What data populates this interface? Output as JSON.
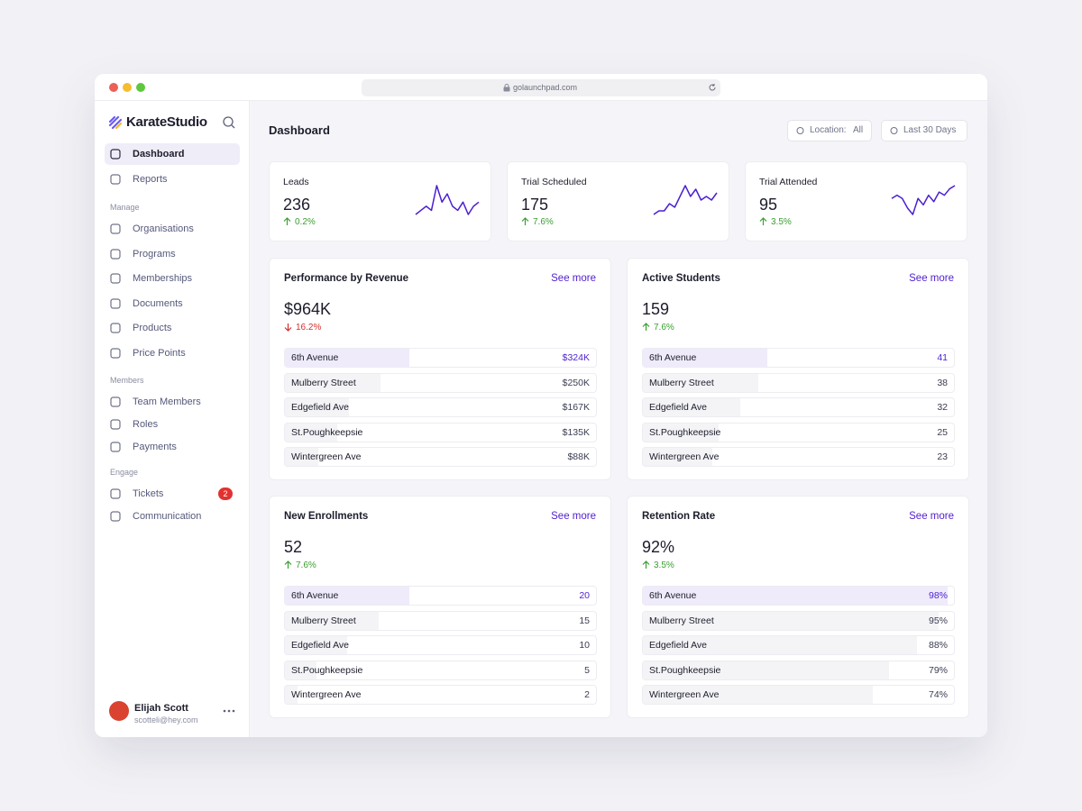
{
  "browser": {
    "url": "golaunchpad.com"
  },
  "sidebar": {
    "brand": "KarateStudio",
    "nav": [
      {
        "label": "Dashboard",
        "active": true
      },
      {
        "label": "Reports"
      }
    ],
    "sections": [
      {
        "title": "Manage",
        "items": [
          {
            "label": "Organisations"
          },
          {
            "label": "Programs"
          },
          {
            "label": "Memberships"
          },
          {
            "label": "Documents"
          },
          {
            "label": "Products"
          },
          {
            "label": "Price Points"
          }
        ]
      },
      {
        "title": "Members",
        "items": [
          {
            "label": "Team Members"
          },
          {
            "label": "Roles"
          },
          {
            "label": "Payments"
          }
        ]
      },
      {
        "title": "Engage",
        "items": [
          {
            "label": "Tickets",
            "badge": "2"
          },
          {
            "label": "Communication"
          }
        ]
      }
    ],
    "user": {
      "name": "Elijah Scott",
      "email": "scotteli@hey.com"
    }
  },
  "header": {
    "title": "Dashboard",
    "filters": [
      {
        "label": "Location:",
        "value": "All"
      },
      {
        "label": "Last 30 Days"
      }
    ]
  },
  "kpis": [
    {
      "label": "Leads",
      "value": 236,
      "change": "0.2%",
      "trend": "up",
      "sparkline": [
        2,
        3,
        4,
        3,
        9,
        5,
        7,
        4,
        3,
        5,
        2,
        4,
        5
      ]
    },
    {
      "label": "Trial Scheduled",
      "value": 175,
      "change": "7.6%",
      "trend": "up",
      "sparkline": [
        1,
        2,
        2,
        4,
        3,
        6,
        9,
        6,
        8,
        5,
        6,
        5,
        7
      ]
    },
    {
      "label": "Trial Attended",
      "value": 95,
      "change": "3.5%",
      "trend": "up",
      "sparkline": [
        6,
        7,
        6,
        3,
        1,
        6,
        4,
        7,
        5,
        8,
        7,
        9,
        10
      ]
    }
  ],
  "panels": [
    {
      "title": "Performance by Revenue",
      "link": "See more",
      "value": "$964K",
      "change": "16.2%",
      "trend": "down",
      "format": "count",
      "rows": [
        {
          "name": "6th Avenue",
          "value": 324,
          "value_label": "$324K"
        },
        {
          "name": "Mulberry Street",
          "value": 250,
          "value_label": "$250K"
        },
        {
          "name": "Edgefield Ave",
          "value": 167,
          "value_label": "$167K"
        },
        {
          "name": "St.Poughkeepsie",
          "value": 135,
          "value_label": "$135K"
        },
        {
          "name": "Wintergreen Ave",
          "value": 88,
          "value_label": "$88K"
        }
      ]
    },
    {
      "title": "Active Students",
      "link": "See more",
      "value": "159",
      "change": "7.6%",
      "trend": "up",
      "format": "count",
      "rows": [
        {
          "name": "6th Avenue",
          "value": 41
        },
        {
          "name": "Mulberry Street",
          "value": 38
        },
        {
          "name": "Edgefield Ave",
          "value": 32
        },
        {
          "name": "St.Poughkeepsie",
          "value": 25
        },
        {
          "name": "Wintergreen Ave",
          "value": 23
        }
      ]
    },
    {
      "title": "New Enrollments",
      "link": "See more",
      "value": "52",
      "change": "7.6%",
      "trend": "up",
      "format": "count",
      "rows": [
        {
          "name": "6th Avenue",
          "value": 20
        },
        {
          "name": "Mulberry Street",
          "value": 15
        },
        {
          "name": "Edgefield Ave",
          "value": 10
        },
        {
          "name": "St.Poughkeepsie",
          "value": 5
        },
        {
          "name": "Wintergreen Ave",
          "value": 2
        }
      ]
    },
    {
      "title": "Retention Rate",
      "link": "See more",
      "value": "92%",
      "change": "3.5%",
      "trend": "up",
      "format": "percent",
      "rows": [
        {
          "name": "6th Avenue",
          "value": 98,
          "value_label": "98%"
        },
        {
          "name": "Mulberry Street",
          "value": 95,
          "value_label": "95%"
        },
        {
          "name": "Edgefield Ave",
          "value": 88,
          "value_label": "88%"
        },
        {
          "name": "St.Poughkeepsie",
          "value": 79,
          "value_label": "79%"
        },
        {
          "name": "Wintergreen Ave",
          "value": 74,
          "value_label": "74%"
        }
      ]
    }
  ]
}
